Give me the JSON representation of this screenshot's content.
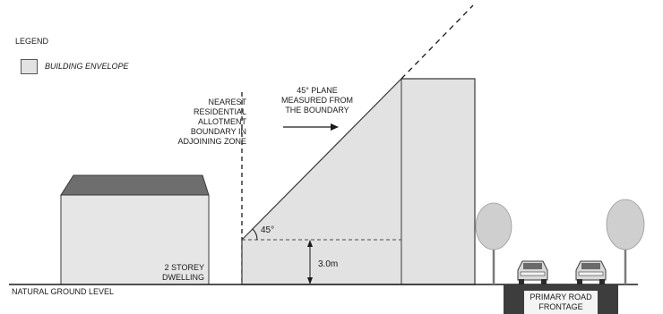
{
  "legend": {
    "title": "LEGEND",
    "item_label": "BUILDING ENVELOPE",
    "swatch_color": "#e2e2e2"
  },
  "labels": {
    "boundary": "NEAREST RESIDENTIAL ALLOTMENT BOUNDARY IN ADJOINING ZONE",
    "plane": "45° PLANE MEASURED FROM THE BOUNDARY",
    "angle": "45°",
    "height": "3.0m",
    "dwelling": "2 STOREY DWELLING",
    "ground": "NATURAL GROUND LEVEL",
    "road": "PRIMARY ROAD FRONTAGE"
  },
  "colors": {
    "envelope_fill": "#e2e2e2",
    "outline": "#3a3a3a",
    "roof": "#6e6e6e",
    "tree_canopy": "#cfcfcf",
    "road": "#3d3d3d"
  }
}
